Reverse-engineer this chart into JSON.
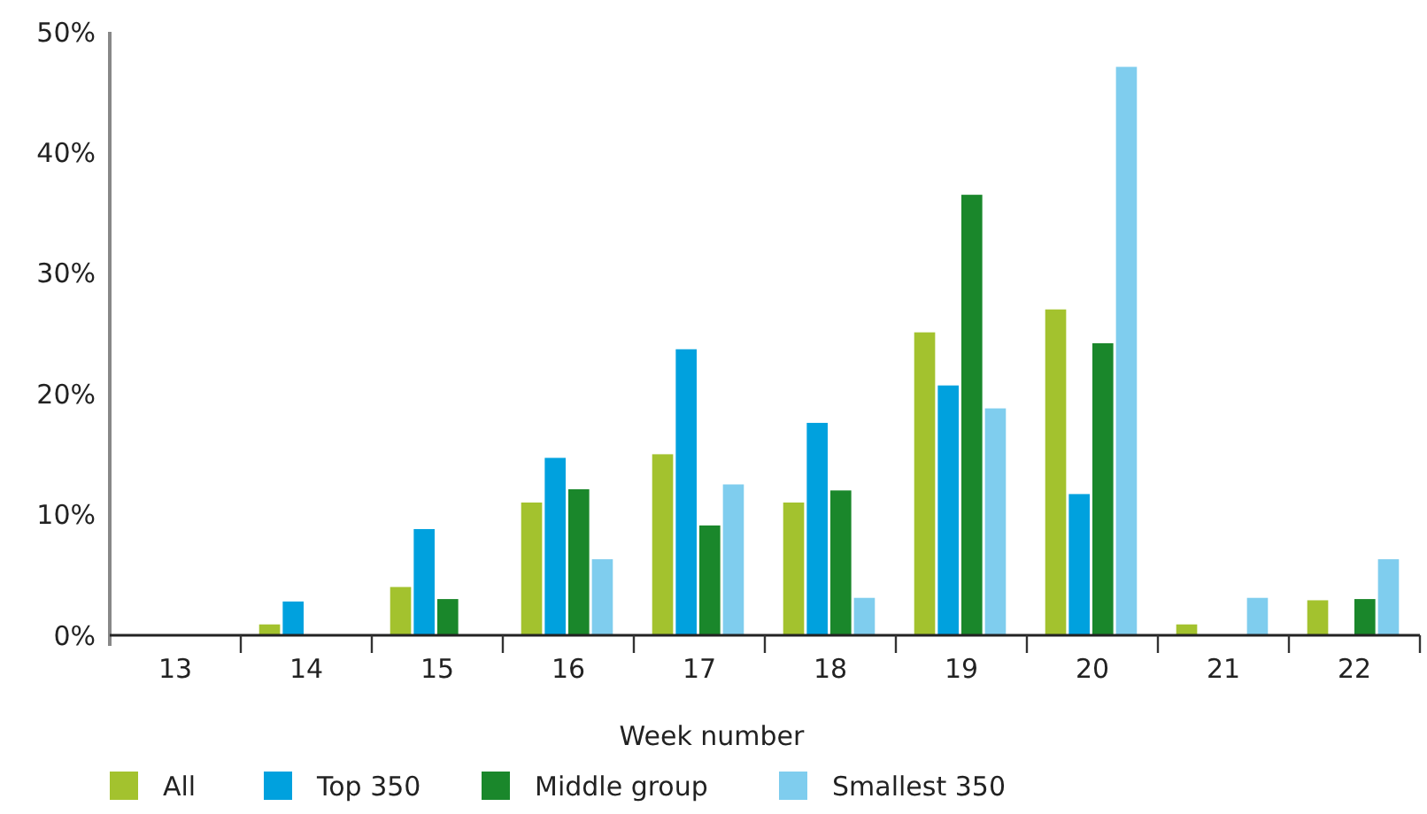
{
  "chart_data": {
    "type": "bar",
    "xlabel": "Week number",
    "categories": [
      "13",
      "14",
      "15",
      "16",
      "17",
      "18",
      "19",
      "20",
      "21",
      "22"
    ],
    "series": [
      {
        "name": "All",
        "color": "#a3c22e",
        "values": [
          0,
          0.9,
          4.0,
          11.0,
          15.0,
          11.0,
          25.1,
          27.0,
          0.9,
          2.9
        ]
      },
      {
        "name": "Top 350",
        "color": "#00a1de",
        "values": [
          0,
          2.8,
          8.8,
          14.7,
          23.7,
          17.6,
          20.7,
          11.7,
          0,
          0
        ]
      },
      {
        "name": "Middle group",
        "color": "#1a872b",
        "values": [
          0,
          0,
          3.0,
          12.1,
          9.1,
          12.0,
          36.5,
          24.2,
          0,
          3.0
        ]
      },
      {
        "name": "Smallest 350",
        "color": "#7fcdee",
        "values": [
          0,
          0,
          0,
          6.3,
          12.5,
          3.1,
          18.8,
          47.1,
          3.1,
          6.3
        ]
      }
    ],
    "ylim": [
      0,
      50
    ],
    "yticks": [
      {
        "value": 0,
        "label": "0%"
      },
      {
        "value": 10,
        "label": "10%"
      },
      {
        "value": 20,
        "label": "20%"
      },
      {
        "value": 30,
        "label": "30%"
      },
      {
        "value": 40,
        "label": "40%"
      },
      {
        "value": 50,
        "label": "50%"
      }
    ],
    "grid": false,
    "legend": "bottom"
  }
}
